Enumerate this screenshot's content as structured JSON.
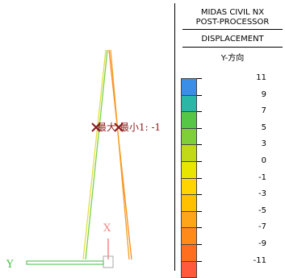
{
  "header": {
    "title": "MIDAS CIVIL NX",
    "subtitle": "POST-PROCESSOR",
    "result_type": "DISPLACEMENT",
    "component": "Y-方向"
  },
  "legend": {
    "values": [
      "11",
      "9",
      "7",
      "5",
      "3",
      "0",
      "-1",
      "-3",
      "-5",
      "-7",
      "-9",
      "-11"
    ],
    "colors": [
      "#3a8ee8",
      "#2ab7a8",
      "#55c646",
      "#7fce3a",
      "#c2d91a",
      "#e9e400",
      "#ffd400",
      "#ffc000",
      "#ffa51a",
      "#ff8a1a",
      "#ff6e1e",
      "#ff5a3c"
    ]
  },
  "viewport": {
    "max_label": "最大",
    "min_label": "最小",
    "min_value": "1: -1",
    "axis_x_label": "X",
    "axis_y_label": "Y",
    "axis_x_color": "#e88",
    "axis_y_color": "#4c4"
  }
}
